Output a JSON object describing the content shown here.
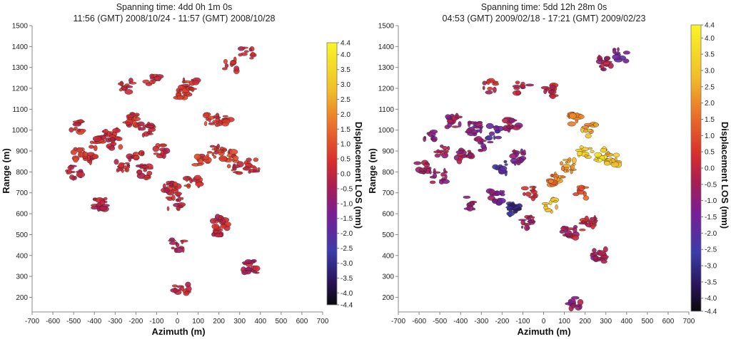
{
  "chart_data": [
    {
      "type": "scatter",
      "title_line1": "Spanning time: 4dd 0h 1m 0s",
      "title_line2": "11:56 (GMT) 2008/10/24 - 11:57 (GMT) 2008/10/28",
      "xlabel": "Azimuth (m)",
      "ylabel": "Range (m)",
      "xlim": [
        -700,
        700
      ],
      "ylim": [
        130,
        1500
      ],
      "xticks": [
        -700,
        -600,
        -500,
        -400,
        -300,
        -200,
        -100,
        0,
        100,
        200,
        300,
        400,
        500,
        600,
        700
      ],
      "yticks": [
        1500,
        1400,
        1300,
        1200,
        1100,
        1000,
        900,
        800,
        700,
        600,
        500,
        400,
        300,
        200
      ],
      "colorbar": {
        "label": "Displacement LOS (mm)",
        "range": [
          -4.4,
          4.4
        ],
        "ticks": [
          "4.4",
          "4.0",
          "3.5",
          "3.0",
          "2.5",
          "2.0",
          "1.5",
          "1.0",
          "0.5",
          "0.0",
          "-0.5",
          "-1.0",
          "-1.5",
          "-2.0",
          "-2.5",
          "-3.0",
          "-3.5",
          "-4.0",
          "-4.4"
        ]
      },
      "clusters": [
        {
          "x": -240,
          "y": 1210,
          "v": 0.3
        },
        {
          "x": 30,
          "y": 1180,
          "v": 0.5
        },
        {
          "x": 60,
          "y": 1220,
          "v": 0.4
        },
        {
          "x": -120,
          "y": 1230,
          "v": 0.2
        },
        {
          "x": -480,
          "y": 1020,
          "v": 0.3
        },
        {
          "x": -380,
          "y": 940,
          "v": 0.2
        },
        {
          "x": -320,
          "y": 980,
          "v": 0.1
        },
        {
          "x": -230,
          "y": 1050,
          "v": 0.3
        },
        {
          "x": -150,
          "y": 1000,
          "v": 0.2
        },
        {
          "x": -470,
          "y": 880,
          "v": 0.4
        },
        {
          "x": -420,
          "y": 870,
          "v": 0.3
        },
        {
          "x": -300,
          "y": 930,
          "v": 0.2
        },
        {
          "x": -200,
          "y": 880,
          "v": 0.2
        },
        {
          "x": -70,
          "y": 900,
          "v": 0.0
        },
        {
          "x": -500,
          "y": 800,
          "v": -0.2
        },
        {
          "x": -260,
          "y": 830,
          "v": 0.1
        },
        {
          "x": -150,
          "y": 800,
          "v": 0.1
        },
        {
          "x": 170,
          "y": 1060,
          "v": 0.5
        },
        {
          "x": 220,
          "y": 1040,
          "v": 0.4
        },
        {
          "x": 190,
          "y": 900,
          "v": 0.5
        },
        {
          "x": 250,
          "y": 880,
          "v": 0.6
        },
        {
          "x": 120,
          "y": 850,
          "v": 0.5
        },
        {
          "x": 280,
          "y": 820,
          "v": 0.3
        },
        {
          "x": 330,
          "y": 1370,
          "v": 0.2
        },
        {
          "x": 250,
          "y": 1310,
          "v": 0.3
        },
        {
          "x": 360,
          "y": 830,
          "v": 0.1
        },
        {
          "x": 80,
          "y": 760,
          "v": 0.2
        },
        {
          "x": -30,
          "y": 720,
          "v": 0.1
        },
        {
          "x": -10,
          "y": 650,
          "v": 0.1
        },
        {
          "x": 200,
          "y": 560,
          "v": 0.0
        },
        {
          "x": 210,
          "y": 525,
          "v": -0.1
        },
        {
          "x": 350,
          "y": 345,
          "v": -0.3
        },
        {
          "x": 0,
          "y": 450,
          "v": -0.2
        },
        {
          "x": -380,
          "y": 645,
          "v": -0.1
        },
        {
          "x": 20,
          "y": 240,
          "v": 0.0
        }
      ]
    },
    {
      "type": "scatter",
      "title_line1": "Spanning time: 5dd 12h 28m 0s",
      "title_line2": "04:53 (GMT) 2009/02/18 - 17:21 (GMT) 2009/02/23",
      "xlabel": "Azimuth (m)",
      "ylabel": "Range (m)",
      "xlim": [
        -700,
        700
      ],
      "ylim": [
        130,
        1500
      ],
      "xticks": [
        -700,
        -600,
        -500,
        -400,
        -300,
        -200,
        -100,
        0,
        100,
        200,
        300,
        400,
        500,
        600,
        700
      ],
      "yticks": [
        1500,
        1400,
        1300,
        1200,
        1100,
        1000,
        900,
        800,
        700,
        600,
        500,
        400,
        300,
        200
      ],
      "colorbar": {
        "label": "Displacement LOS (mm)",
        "range": [
          -4.4,
          4.4
        ],
        "ticks": [
          "4.4",
          "4.0",
          "3.5",
          "3.0",
          "2.5",
          "2.0",
          "1.5",
          "1.0",
          "0.5",
          "0.0",
          "-0.5",
          "-1.0",
          "-1.5",
          "-2.0",
          "-2.5",
          "-3.0",
          "-3.5",
          "-4.0",
          "-4.4"
        ]
      },
      "clusters": [
        {
          "x": -260,
          "y": 1210,
          "v": 0.0
        },
        {
          "x": -100,
          "y": 1200,
          "v": -0.3
        },
        {
          "x": 30,
          "y": 1190,
          "v": 0.0
        },
        {
          "x": 370,
          "y": 1360,
          "v": -1.5
        },
        {
          "x": 300,
          "y": 1320,
          "v": -0.5
        },
        {
          "x": -430,
          "y": 1040,
          "v": -0.8
        },
        {
          "x": -330,
          "y": 1010,
          "v": -1.2
        },
        {
          "x": -240,
          "y": 990,
          "v": -1.8
        },
        {
          "x": -150,
          "y": 1030,
          "v": -0.6
        },
        {
          "x": -560,
          "y": 980,
          "v": -0.9
        },
        {
          "x": -480,
          "y": 900,
          "v": -0.5
        },
        {
          "x": -380,
          "y": 880,
          "v": -0.7
        },
        {
          "x": -290,
          "y": 930,
          "v": -1.0
        },
        {
          "x": -580,
          "y": 820,
          "v": -0.4
        },
        {
          "x": -500,
          "y": 780,
          "v": -0.6
        },
        {
          "x": -210,
          "y": 820,
          "v": -2.5
        },
        {
          "x": -120,
          "y": 870,
          "v": -1.1
        },
        {
          "x": 150,
          "y": 1050,
          "v": 2.0
        },
        {
          "x": 220,
          "y": 1000,
          "v": 2.5
        },
        {
          "x": 200,
          "y": 900,
          "v": 3.3
        },
        {
          "x": 280,
          "y": 880,
          "v": 3.6
        },
        {
          "x": 120,
          "y": 830,
          "v": 2.2
        },
        {
          "x": 330,
          "y": 860,
          "v": 2.8
        },
        {
          "x": 60,
          "y": 760,
          "v": 1.8
        },
        {
          "x": 180,
          "y": 700,
          "v": 1.2
        },
        {
          "x": 30,
          "y": 640,
          "v": 3.0
        },
        {
          "x": -60,
          "y": 700,
          "v": 0.5
        },
        {
          "x": -150,
          "y": 620,
          "v": -3.0
        },
        {
          "x": -230,
          "y": 680,
          "v": -1.2
        },
        {
          "x": -350,
          "y": 650,
          "v": -0.8
        },
        {
          "x": 220,
          "y": 550,
          "v": 0.0
        },
        {
          "x": 120,
          "y": 510,
          "v": -0.4
        },
        {
          "x": 270,
          "y": 400,
          "v": -0.6
        },
        {
          "x": 150,
          "y": 170,
          "v": -0.7
        },
        {
          "x": -80,
          "y": 560,
          "v": -0.5
        }
      ]
    }
  ]
}
